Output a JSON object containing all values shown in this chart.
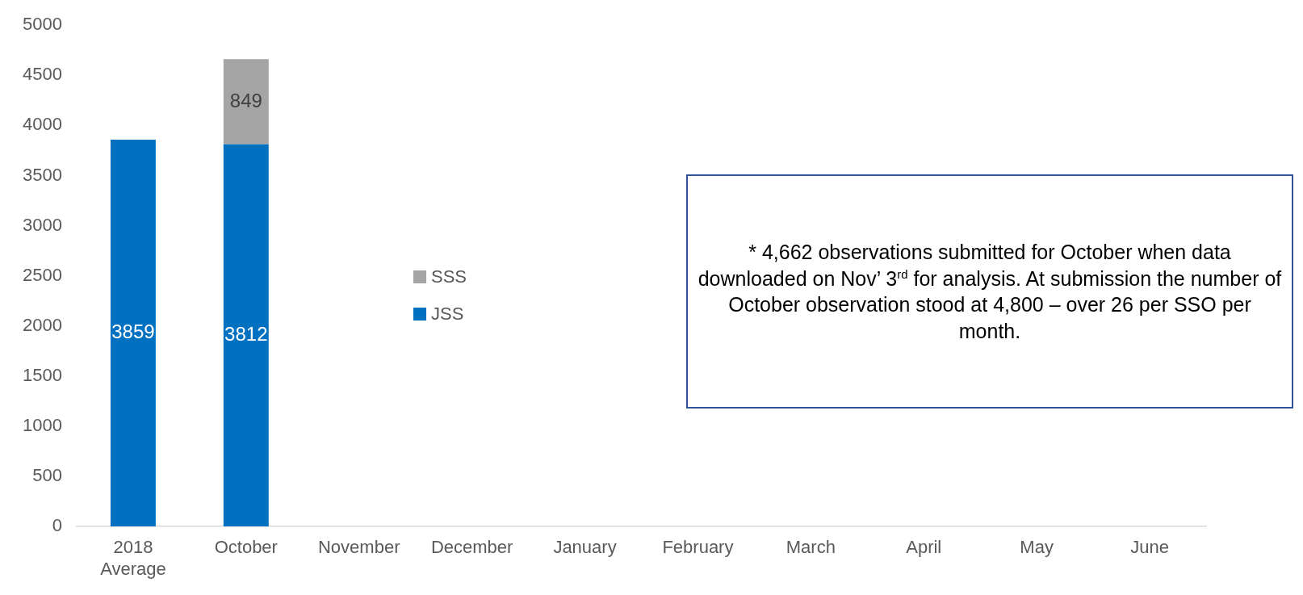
{
  "chart_data": {
    "type": "bar",
    "stacked": true,
    "categories": [
      "2018 Average",
      "October",
      "November",
      "December",
      "January",
      "February",
      "March",
      "April",
      "May",
      "June"
    ],
    "series": [
      {
        "name": "JSS",
        "color": "#0070c0",
        "values": [
          3859,
          3812,
          null,
          null,
          null,
          null,
          null,
          null,
          null,
          null
        ]
      },
      {
        "name": "SSS",
        "color": "#a5a5a5",
        "values": [
          null,
          849,
          null,
          null,
          null,
          null,
          null,
          null,
          null,
          null
        ]
      }
    ],
    "ylim": [
      0,
      5000
    ],
    "yticks": [
      0,
      500,
      1000,
      1500,
      2000,
      2500,
      3000,
      3500,
      4000,
      4500,
      5000
    ],
    "grid": false,
    "legend": "left",
    "data_labels": true,
    "annotations": [
      "* 4,662 observations submitted for October when data downloaded on Nov’ 3$^{rd}$ for analysis. At submission the number of October observation stood at 4,800 – over 26 per SSO per month."
    ]
  }
}
